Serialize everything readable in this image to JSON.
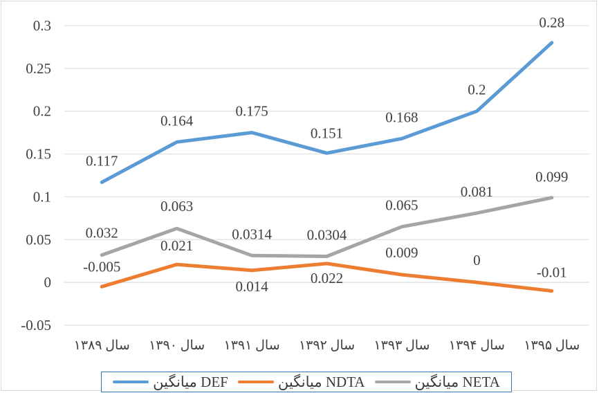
{
  "chart_data": {
    "type": "line",
    "categories": [
      "سال ۱۳۸۹",
      "سال ۱۳۹۰",
      "سال ۱۳۹۱",
      "سال ۱۳۹۲",
      "سال ۱۳۹۳",
      "سال ۱۳۹۴",
      "سال ۱۳۹۵"
    ],
    "ylim": [
      -0.05,
      0.3
    ],
    "yticks": [
      -0.05,
      0,
      0.05,
      0.1,
      0.15,
      0.2,
      0.25,
      0.3
    ],
    "ytick_labels": [
      "-0.05",
      "0",
      "0.05",
      "0.1",
      "0.15",
      "0.2",
      "0.25",
      "0.3"
    ],
    "grid": true,
    "legend_position": "bottom",
    "series": [
      {
        "name": "میانگین DEF",
        "color": "#5b9bd5",
        "values": [
          0.117,
          0.164,
          0.175,
          0.151,
          0.168,
          0.2,
          0.28
        ],
        "labels": [
          "0.117",
          "0.164",
          "0.175",
          "0.151",
          "0.168",
          "0.2",
          "0.28"
        ]
      },
      {
        "name": "میانگین NDTA",
        "color": "#ed7d31",
        "values": [
          -0.005,
          0.021,
          0.014,
          0.022,
          0.009,
          0,
          -0.01
        ],
        "labels": [
          "-0.005",
          "0.021",
          "0.014",
          "0.022",
          "0.009",
          "0",
          "-0.01"
        ]
      },
      {
        "name": "میانگین NETA",
        "color": "#a5a5a5",
        "values": [
          0.032,
          0.063,
          0.0314,
          0.0304,
          0.065,
          0.081,
          0.099
        ],
        "labels": [
          "0.032",
          "0.063",
          "0.0314",
          "0.0304",
          "0.065",
          "0.081",
          "0.099"
        ]
      }
    ]
  }
}
